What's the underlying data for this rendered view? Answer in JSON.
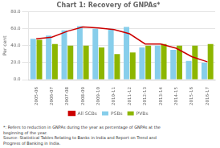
{
  "chart_data": {
    "type": "bar",
    "title": "Chart 1: Recovery of GNPAs*",
    "y_label": "Per cent",
    "categories": [
      "2005-06",
      "2006-07",
      "2007-08",
      "2008-09",
      "2009-10",
      "2010-11",
      "2011-12",
      "2012-13",
      "2013-14",
      "2014-15",
      "2015-16",
      "2016-17"
    ],
    "series": [
      {
        "name": "PSBs",
        "type": "bar",
        "color": "#87CEEB",
        "values": [
          48,
          52,
          58,
          63,
          60,
          60,
          62,
          38,
          40,
          35,
          22,
          20
        ]
      },
      {
        "name": "PVBs",
        "type": "bar",
        "color": "#8DB600",
        "values": [
          47,
          42,
          40,
          40,
          38,
          30,
          32,
          40,
          42,
          40,
          40,
          42
        ]
      },
      {
        "name": "All SCBs",
        "type": "line",
        "color": "#CC0000",
        "values": [
          48,
          50,
          57,
          62,
          61,
          59,
          54,
          42,
          42,
          37,
          27,
          21
        ]
      }
    ],
    "ylim": [
      0,
      80
    ],
    "yticks": [
      {
        "value": 0,
        "label": "0.0"
      },
      {
        "value": 20,
        "label": "20.0"
      },
      {
        "value": 40,
        "label": "40.0"
      },
      {
        "value": 60,
        "label": "60.0"
      },
      {
        "value": 80,
        "label": "80.0"
      }
    ],
    "grid": true,
    "legend": "bottom",
    "annotations": [
      "*: Refers to reduction in GNPAs during the year as percentage of GNPAs at the",
      "beginning of the year.",
      "Source: Statistical Tables Relating to Banks in India and Report on Trend and",
      "Progress of Banking in India."
    ]
  }
}
